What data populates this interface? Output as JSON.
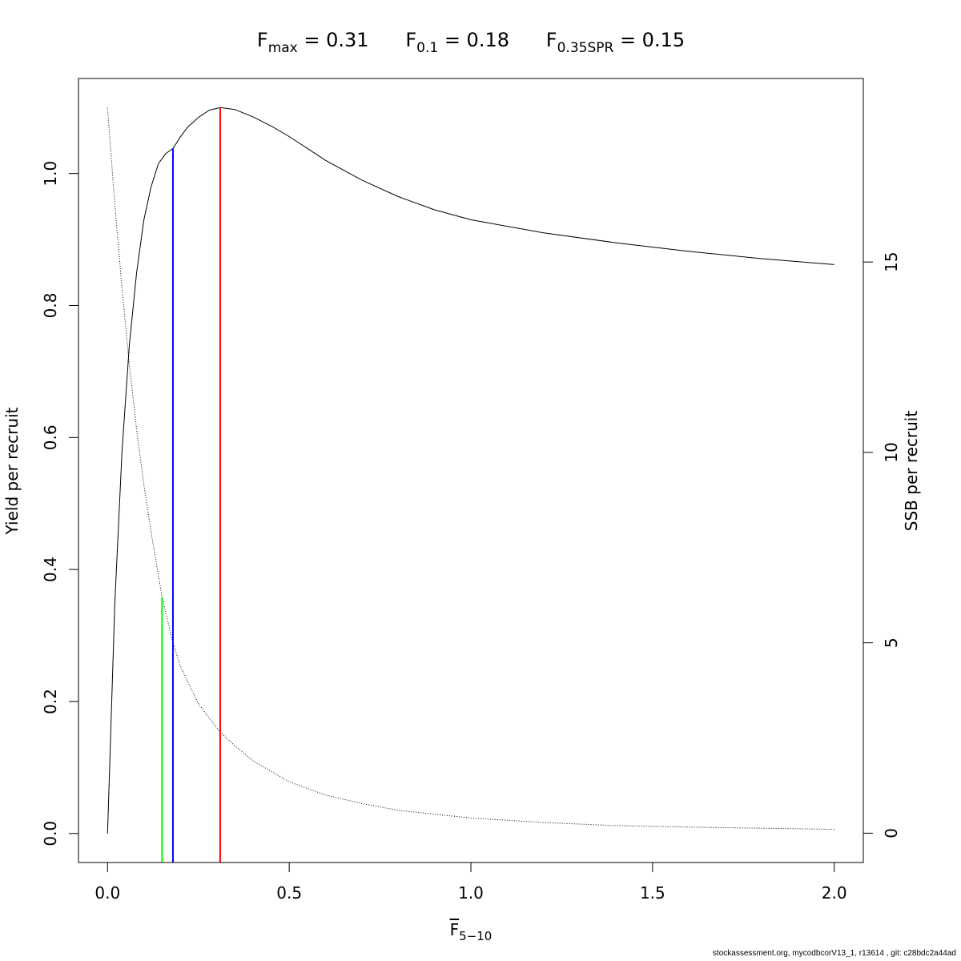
{
  "chart_data": {
    "type": "line",
    "title": {
      "parts": [
        {
          "base": "F",
          "sub": "max",
          "rest": " = 0.31"
        },
        {
          "base": "F",
          "sub": "0.1",
          "rest": " = 0.18"
        },
        {
          "base": "F",
          "sub": "0.35SPR",
          "rest": " = 0.15"
        }
      ]
    },
    "xlabel": {
      "base": "F",
      "sub": "5−10"
    },
    "ylabel_left": "Yield per recruit",
    "ylabel_right": "SSB per recruit",
    "xlim": [
      -0.08,
      2.08
    ],
    "ylim_left": [
      -0.044,
      1.144
    ],
    "ylim_right": [
      -0.77,
      19.82
    ],
    "x_ticks": [
      "0.0",
      "0.5",
      "1.0",
      "1.5",
      "2.0"
    ],
    "y_left_ticks": [
      "0.0",
      "0.2",
      "0.4",
      "0.6",
      "0.8",
      "1.0"
    ],
    "y_right_ticks": [
      "0",
      "5",
      "10",
      "15"
    ],
    "grid": false,
    "reference_points": {
      "Fmax": 0.31,
      "F01": 0.18,
      "F35SPR": 0.15
    },
    "reference_lines": [
      {
        "name": "F0.35SPR",
        "x": 0.15,
        "y_top_right_axis": 6.2,
        "axis": "right",
        "color": "#00ff00"
      },
      {
        "name": "F0.1",
        "x": 0.18,
        "y_top_left_axis": 1.038,
        "axis": "left",
        "color": "#0000ff"
      },
      {
        "name": "Fmax",
        "x": 0.31,
        "y_top_left_axis": 1.1,
        "axis": "left",
        "color": "#ff0000"
      }
    ],
    "series": [
      {
        "axis": "left",
        "style": "solid",
        "color": "#000000",
        "x": [
          0,
          0.02,
          0.04,
          0.06,
          0.08,
          0.1,
          0.12,
          0.14,
          0.16,
          0.18,
          0.2,
          0.22,
          0.25,
          0.28,
          0.31,
          0.35,
          0.4,
          0.45,
          0.5,
          0.6,
          0.7,
          0.8,
          0.9,
          1.0,
          1.2,
          1.4,
          1.6,
          1.8,
          2.0
        ],
        "y": [
          0,
          0.35,
          0.58,
          0.74,
          0.85,
          0.93,
          0.98,
          1.015,
          1.03,
          1.038,
          1.055,
          1.07,
          1.085,
          1.096,
          1.1,
          1.097,
          1.086,
          1.072,
          1.056,
          1.02,
          0.99,
          0.965,
          0.945,
          0.93,
          0.91,
          0.895,
          0.882,
          0.871,
          0.862
        ]
      },
      {
        "axis": "right",
        "style": "dotted",
        "color": "#000000",
        "x": [
          0,
          0.02,
          0.04,
          0.06,
          0.08,
          0.1,
          0.12,
          0.15,
          0.18,
          0.2,
          0.25,
          0.31,
          0.35,
          0.4,
          0.5,
          0.6,
          0.7,
          0.8,
          1.0,
          1.2,
          1.4,
          1.6,
          1.8,
          2.0
        ],
        "y": [
          19.05,
          16.5,
          14.3,
          12.3,
          10.6,
          9.15,
          7.9,
          6.2,
          5.0,
          4.4,
          3.4,
          2.65,
          2.3,
          1.9,
          1.35,
          1.0,
          0.78,
          0.6,
          0.4,
          0.28,
          0.2,
          0.16,
          0.13,
          0.1
        ]
      }
    ]
  },
  "footer": "stockassessment.org, mycodbcorV13_1, r13614 , git: c28bdc2a44ad",
  "colors": {
    "axis": "#000000",
    "fmax": "#ff0000",
    "f01": "#0000ff",
    "fspr": "#00ff00"
  }
}
